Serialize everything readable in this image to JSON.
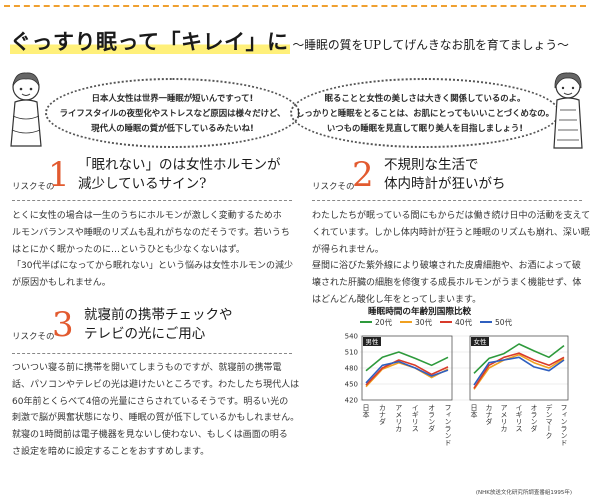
{
  "title": {
    "main": "ぐっすり眠って「キレイ」に",
    "sub": "〜睡眠の質をUPしてげんきなお肌を育てましょう〜"
  },
  "intro": {
    "left_lines": [
      "日本人女性は世界一睡眠が短いんですって!",
      "ライフスタイルの夜型化やストレスなど原因は様々だけど、",
      "現代人の睡眠の質が低下しているみたいね!"
    ],
    "right_lines": [
      "眠ることと女性の美しさは大きく関係しているのよ。",
      "しっかりと睡眠をとることは、お肌にとってもいいことづくめなの。",
      "いつもの睡眠を見直して眠り美人を目指しましょう!"
    ]
  },
  "risks": [
    {
      "label": "リスクその",
      "number": "1",
      "title_lines": [
        "「眠れない」のは女性ホルモンが",
        "減少しているサイン?"
      ],
      "body_lines": [
        "とくに女性の場合は一生のうちにホルモンが激しく変動するためホ",
        "ルモンバランスや睡眠のリズムも乱れがちなのだそうです。若いうち",
        "はとにかく眠かったのに…というひとも少なくないはず。",
        "「30代半ばになってから眠れない」という悩みは女性ホルモンの減少",
        "が原因かもしれません。"
      ]
    },
    {
      "label": "リスクその",
      "number": "2",
      "title_lines": [
        "不規則な生活で",
        "体内時計が狂いがち"
      ],
      "body_lines": [
        "わたしたちが眠っている間にもからだは働き続け日中の活動を支えて",
        "くれています。しかし体内時計が狂うと睡眠のリズムも崩れ、深い眠り",
        "が得られません。",
        "昼間に浴びた紫外線により破壊された皮膚細胞や、お酒によって破",
        "壊された肝臓の細胞を修復する成長ホルモンがうまく機能せず、体",
        "はどんどん酸化し年をとってしまいます。"
      ]
    },
    {
      "label": "リスクその",
      "number": "3",
      "title_lines": [
        "就寝前の携帯チェックや",
        "テレビの光にご用心"
      ],
      "body_lines": [
        "ついつい寝る前に携帯を開いてしまうものですが、就寝前の携帯電",
        "話、パソコンやテレビの光は避けたいところです。わたしたち現代人は",
        "60年前とくらべて4倍の光量にさらされているそうです。明るい光の",
        "刺激で脳が興奮状態になり、睡眠の質が低下しているかもしれません。",
        "就寝の1時間前は電子機器を見ないし使わない、もしくは画面の明る",
        "さ設定を暗めに設定することをおすすめします。"
      ]
    }
  ],
  "chart_data": {
    "type": "line",
    "title": "睡眠時間の年齢別国際比較",
    "source": "(NHK放送文化研究所調査番組1995年)",
    "ylim": [
      420,
      540
    ],
    "yticks": [
      420,
      450,
      480,
      510,
      540
    ],
    "panels": [
      {
        "label": "男性",
        "categories": [
          "日本",
          "カナダ",
          "アメリカ",
          "イギリス",
          "オランダ",
          "フィンランド"
        ],
        "series": [
          {
            "name": "20代",
            "color": "#2e9a3c",
            "values": [
              475,
              500,
              510,
              498,
              485,
              500
            ]
          },
          {
            "name": "30代",
            "color": "#f0a020",
            "values": [
              445,
              478,
              490,
              480,
              462,
              478
            ]
          },
          {
            "name": "40代",
            "color": "#d83a2a",
            "values": [
              448,
              480,
              495,
              485,
              468,
              482
            ]
          },
          {
            "name": "50代",
            "color": "#2f5fbf",
            "values": [
              452,
              485,
              492,
              480,
              465,
              476
            ]
          }
        ]
      },
      {
        "label": "女性",
        "categories": [
          "日本",
          "カナダ",
          "アメリカ",
          "イギリス",
          "オランダ",
          "デンマーク",
          "フィンランド"
        ],
        "series": [
          {
            "name": "20代",
            "color": "#2e9a3c",
            "values": [
              470,
              498,
              507,
              525,
              512,
              500,
              522
            ]
          },
          {
            "name": "30代",
            "color": "#f0a020",
            "values": [
              440,
              480,
              495,
              505,
              490,
              480,
              498
            ]
          },
          {
            "name": "40代",
            "color": "#d83a2a",
            "values": [
              442,
              485,
              500,
              508,
              495,
              485,
              500
            ]
          },
          {
            "name": "50代",
            "color": "#2f5fbf",
            "values": [
              448,
              490,
              495,
              500,
              482,
              475,
              495
            ]
          }
        ]
      }
    ]
  }
}
